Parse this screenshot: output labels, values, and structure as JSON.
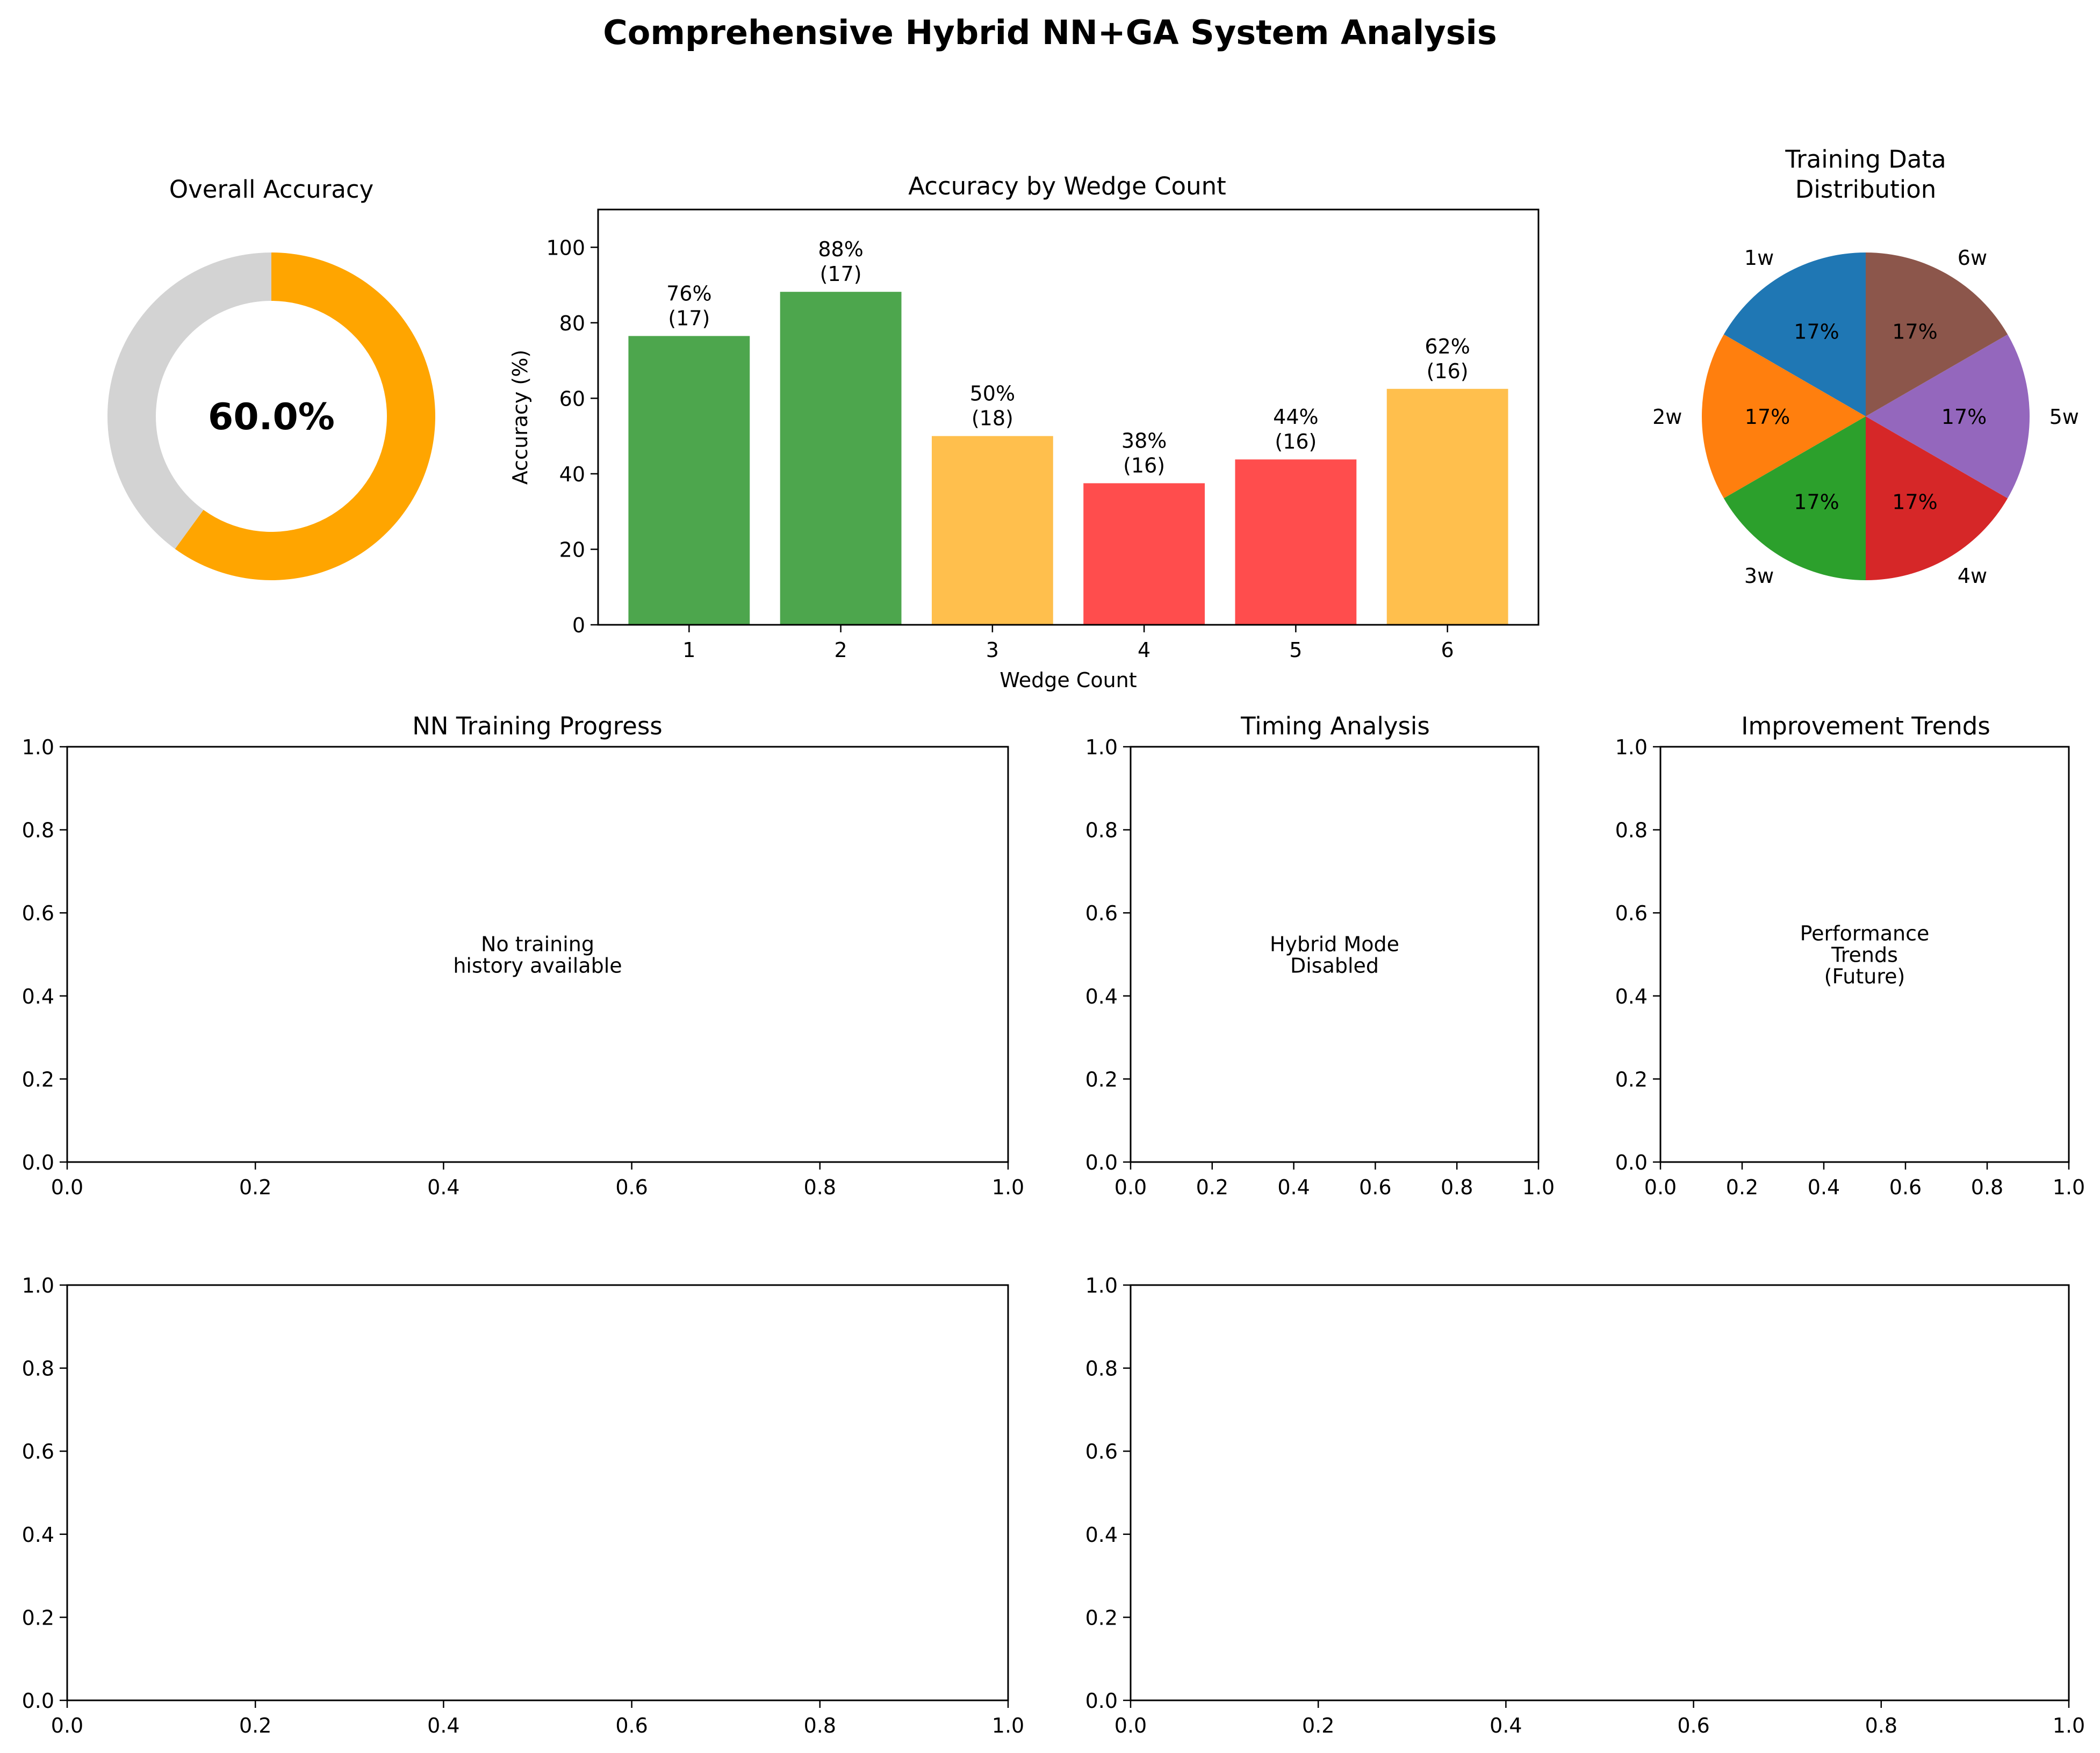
{
  "figure": {
    "title": "Comprehensive Hybrid NN+GA System Analysis"
  },
  "panels": {
    "overall": {
      "title": "Overall Accuracy"
    },
    "wedge": {
      "title": "Accuracy by Wedge Count"
    },
    "dist": {
      "title_lines": [
        "Training Data",
        "Distribution"
      ]
    },
    "nn": {
      "title": "NN Training Progress"
    },
    "timing": {
      "title": "Timing Analysis"
    },
    "trends": {
      "title": "Improvement Trends"
    },
    "bottom_left": {
      "title": ""
    },
    "bottom_right": {
      "title": ""
    }
  },
  "chart_data": [
    {
      "id": "overall",
      "type": "pie",
      "title": "Overall Accuracy",
      "style": "donut",
      "value_percent": 60.0,
      "center_label": "60.0%",
      "slices": [
        {
          "name": "",
          "value": 60.0,
          "color": "#ffa500"
        },
        {
          "name": "",
          "value": 40.0,
          "color": "#d3d3d3"
        }
      ]
    },
    {
      "id": "wedge",
      "type": "bar",
      "title": "Accuracy by Wedge Count",
      "xlabel": "Wedge Count",
      "ylabel": "Accuracy (%)",
      "categories": [
        "1",
        "2",
        "3",
        "4",
        "5",
        "6"
      ],
      "values": [
        76.5,
        88.2,
        50.0,
        37.5,
        43.8,
        62.5
      ],
      "counts": [
        17,
        17,
        18,
        16,
        16,
        16
      ],
      "labels": [
        [
          "76%",
          "(17)"
        ],
        [
          "88%",
          "(17)"
        ],
        [
          "50%",
          "(18)"
        ],
        [
          "38%",
          "(16)"
        ],
        [
          "44%",
          "(16)"
        ],
        [
          "62%",
          "(16)"
        ]
      ],
      "colors": [
        "#4da64d",
        "#4da64d",
        "#ffbf4d",
        "#ff4d4d",
        "#ff4d4d",
        "#ffbf4d"
      ],
      "ylim": [
        0,
        110
      ],
      "yticks": [
        "0",
        "20",
        "40",
        "60",
        "80",
        "100"
      ],
      "grid": false
    },
    {
      "id": "dist",
      "type": "pie",
      "title": "Training Data Distribution",
      "slices": [
        {
          "name": "1w",
          "value": 16.67,
          "label": "17%",
          "color": "#1f77b4"
        },
        {
          "name": "2w",
          "value": 16.67,
          "label": "17%",
          "color": "#ff7f0e"
        },
        {
          "name": "3w",
          "value": 16.67,
          "label": "17%",
          "color": "#2ca02c"
        },
        {
          "name": "4w",
          "value": 16.67,
          "label": "17%",
          "color": "#d62728"
        },
        {
          "name": "5w",
          "value": 16.67,
          "label": "17%",
          "color": "#9467bd"
        },
        {
          "name": "6w",
          "value": 16.67,
          "label": "17%",
          "color": "#8c564b"
        }
      ]
    },
    {
      "id": "nn",
      "type": "line",
      "title": "NN Training Progress",
      "xlim": [
        0,
        1
      ],
      "ylim": [
        0,
        1
      ],
      "ticks": [
        "0.0",
        "0.2",
        "0.4",
        "0.6",
        "0.8",
        "1.0"
      ],
      "note": [
        "No training",
        "history available"
      ]
    },
    {
      "id": "timing",
      "type": "line",
      "title": "Timing Analysis",
      "xlim": [
        0,
        1
      ],
      "ylim": [
        0,
        1
      ],
      "ticks": [
        "0.0",
        "0.2",
        "0.4",
        "0.6",
        "0.8",
        "1.0"
      ],
      "note": [
        "Hybrid Mode",
        "Disabled"
      ]
    },
    {
      "id": "trends",
      "type": "line",
      "title": "Improvement Trends",
      "xlim": [
        0,
        1
      ],
      "ylim": [
        0,
        1
      ],
      "ticks": [
        "0.0",
        "0.2",
        "0.4",
        "0.6",
        "0.8",
        "1.0"
      ],
      "note": [
        "Performance",
        "Trends",
        "(Future)"
      ]
    },
    {
      "id": "bottom_left",
      "type": "line",
      "xlim": [
        0,
        1
      ],
      "ylim": [
        0,
        1
      ],
      "ticks": [
        "0.0",
        "0.2",
        "0.4",
        "0.6",
        "0.8",
        "1.0"
      ]
    },
    {
      "id": "bottom_right",
      "type": "line",
      "xlim": [
        0,
        1
      ],
      "ylim": [
        0,
        1
      ],
      "ticks": [
        "0.0",
        "0.2",
        "0.4",
        "0.6",
        "0.8",
        "1.0"
      ]
    }
  ]
}
